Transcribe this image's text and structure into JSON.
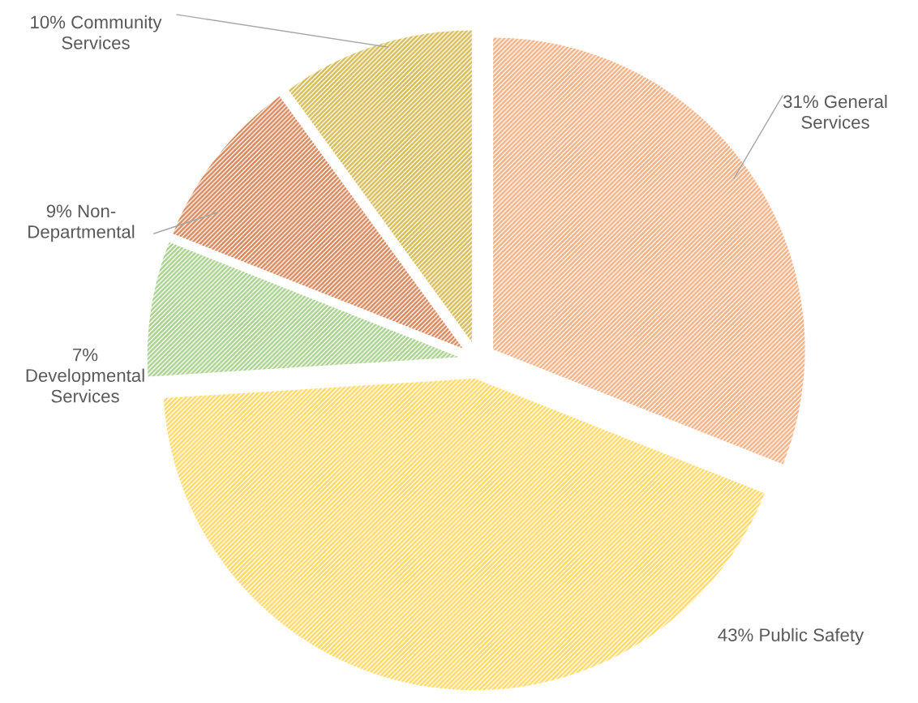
{
  "chart_data": {
    "type": "pie",
    "categories": [
      "General Services",
      "Public Safety",
      "Developmental Services",
      "Non-Departmental",
      "Community Services"
    ],
    "values": [
      31,
      43,
      7,
      9,
      10
    ],
    "value_labels": [
      "31%",
      "43%",
      "7%",
      "9%",
      "10%"
    ],
    "colors": [
      "#f4b183",
      "#ffd966",
      "#a9d18e",
      "#d9875a",
      "#d6bc55"
    ],
    "legend": false
  }
}
